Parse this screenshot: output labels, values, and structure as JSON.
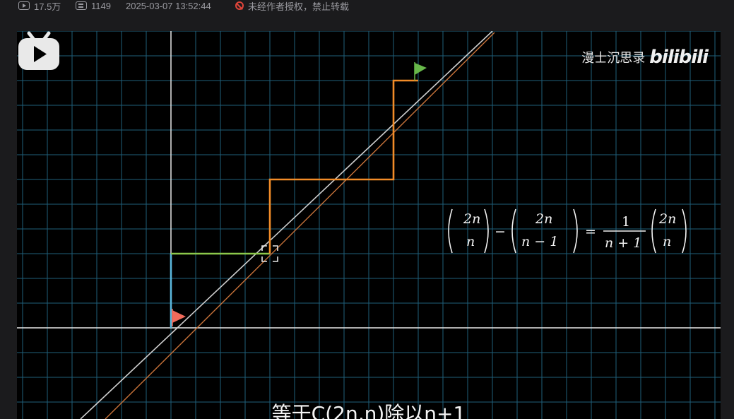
{
  "meta": {
    "views": "17.5万",
    "danmaku_count": "1149",
    "datetime": "2025-03-07 13:52:44",
    "copyright_notice": "未经作者授权，禁止转载"
  },
  "video": {
    "watermark_channel": "漫士沉思录",
    "watermark_brand": "bilibili",
    "subtitle": "等于C(2n,n)除以n+1",
    "formula_text": "(2n choose n) − (2n choose n−1) = 1/(n+1) · (2n choose n)",
    "formula": {
      "t1_top": "2n",
      "t1_bottom": "n",
      "minus": "−",
      "t2_top": "2n",
      "t2_bottom": "n − 1",
      "equals": "=",
      "frac_num": "1",
      "frac_den": "n + 1",
      "t3_top": "2n",
      "t3_bottom": "n"
    },
    "colors": {
      "grid": "#1f5f7a",
      "axis": "#e8e8e8",
      "diagonal_white": "#cfcfcf",
      "diagonal_orange": "#c8733a",
      "path_blue": "#5bb7dd",
      "path_green": "#8cc84b",
      "path_orange": "#f28c28",
      "start_flag": "#f26b5b",
      "end_flag": "#67b84a"
    }
  }
}
